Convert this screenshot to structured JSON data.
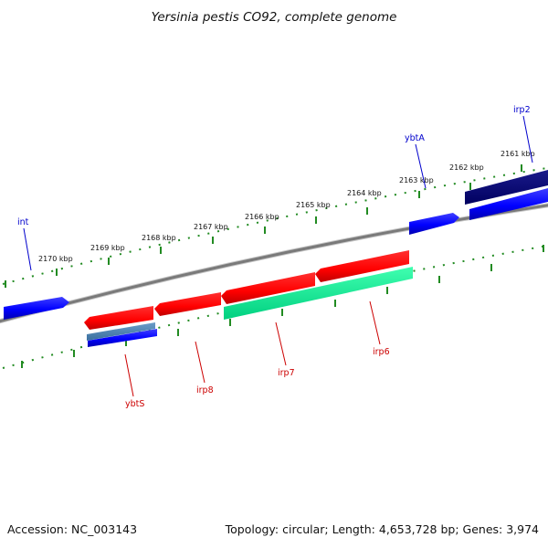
{
  "title": "Yersinia pestis CO92, complete genome",
  "footer": {
    "accession": "Accession: NC_003143",
    "stats": "Topology: circular; Length: 4,653,728 bp; Genes: 3,974"
  },
  "colors": {
    "backbone": "#808080",
    "tick": "#228b22",
    "blue_gene": "#0000ff",
    "navy_gene": "#00007b",
    "red_gene": "#ff0000",
    "green_gene": "#00ff99",
    "steel_gene": "#4682b4",
    "label_blue": "#0000cc",
    "label_red": "#cc0000"
  },
  "position_labels": [
    "2161 kbp",
    "2162 kbp",
    "2163 kbp",
    "2164 kbp",
    "2165 kbp",
    "2166 kbp",
    "2167 kbp",
    "2168 kbp",
    "2169 kbp",
    "2170 kbp"
  ],
  "genes": [
    {
      "label": "irp2",
      "strand": "plus",
      "color": "navy"
    },
    {
      "label": "ybtA",
      "strand": "plus",
      "color": "blue"
    },
    {
      "label": "int",
      "strand": "plus",
      "color": "blue"
    },
    {
      "label": "irp6",
      "strand": "minus",
      "color": "red"
    },
    {
      "label": "irp7",
      "strand": "minus",
      "color": "red"
    },
    {
      "label": "irp8",
      "strand": "minus",
      "color": "red"
    },
    {
      "label": "ybtS",
      "strand": "minus",
      "color": "red"
    }
  ]
}
